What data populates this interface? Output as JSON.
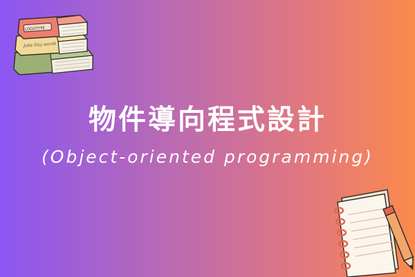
{
  "title_chinese": "物件導向程式設計",
  "title_english": "(Object-oriented programming)",
  "books": {
    "top_spine_text": "LOGOTYPE",
    "middle_spine_text": "Jolie Day words"
  },
  "colors": {
    "gradient_left": "#8b56f2",
    "gradient_right": "#fb8a4c",
    "text": "#ffffff"
  }
}
